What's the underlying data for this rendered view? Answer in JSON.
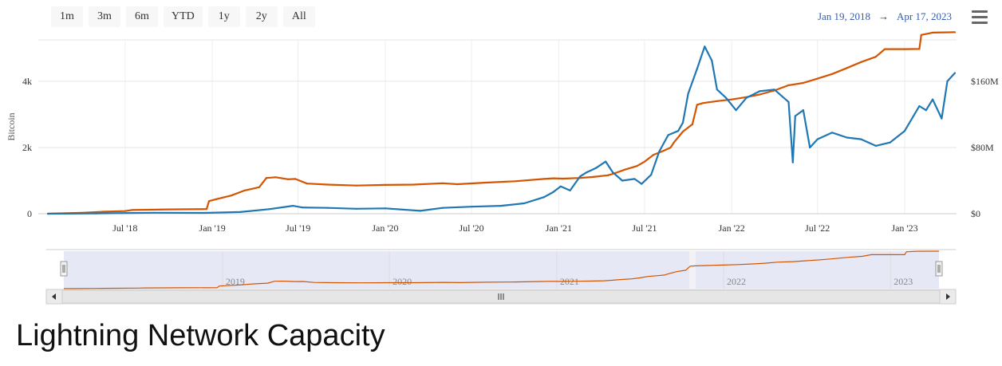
{
  "range_buttons": [
    "1m",
    "3m",
    "6m",
    "YTD",
    "1y",
    "2y",
    "All"
  ],
  "date_range": {
    "from": "Jan 19, 2018",
    "arrow": "→",
    "to": "Apr 17, 2023"
  },
  "page_title": "Lightning Network Capacity",
  "colors": {
    "usd_line": "#1f77b4",
    "btc_line": "#d45500",
    "grid": "#e6e6e6",
    "navigator_mask": "#e6e8f5"
  },
  "chart_data": {
    "type": "line",
    "x_start": "2018-01-19",
    "x_end": "2023-04-17",
    "x_ticks": [
      {
        "label": "Jul '18",
        "date": "2018-07-01"
      },
      {
        "label": "Jan '19",
        "date": "2019-01-01"
      },
      {
        "label": "Jul '19",
        "date": "2019-07-01"
      },
      {
        "label": "Jan '20",
        "date": "2020-01-01"
      },
      {
        "label": "Jul '20",
        "date": "2020-07-01"
      },
      {
        "label": "Jan '21",
        "date": "2021-01-01"
      },
      {
        "label": "Jul '21",
        "date": "2021-07-01"
      },
      {
        "label": "Jan '22",
        "date": "2022-01-01"
      },
      {
        "label": "Jul '22",
        "date": "2022-07-01"
      },
      {
        "label": "Jan '23",
        "date": "2023-01-01"
      }
    ],
    "y_left": {
      "label": "Bitcoin",
      "min": 0,
      "max": 5250,
      "ticks": [
        {
          "v": 0,
          "label": "0"
        },
        {
          "v": 2000,
          "label": "2k"
        },
        {
          "v": 4000,
          "label": "4k"
        }
      ]
    },
    "y_right": {
      "label": "",
      "min": 0,
      "max": 210000000,
      "ticks": [
        {
          "v": 0,
          "label": "$0"
        },
        {
          "v": 80000000,
          "label": "$80M"
        },
        {
          "v": 160000000,
          "label": "$160M"
        }
      ]
    },
    "navigator_ticks": [
      "2019",
      "2020",
      "2021",
      "2022",
      "2023"
    ],
    "navigator_tick_dates": [
      "2019-01-01",
      "2020-01-01",
      "2021-01-01",
      "2022-01-01",
      "2023-01-01"
    ],
    "grid": true,
    "legend": "none",
    "series": [
      {
        "axis": "left",
        "color": "#d45500",
        "points": [
          [
            "2018-01-19",
            0
          ],
          [
            "2018-04-01",
            30
          ],
          [
            "2018-05-15",
            60
          ],
          [
            "2018-07-01",
            80
          ],
          [
            "2018-07-15",
            110
          ],
          [
            "2018-10-01",
            130
          ],
          [
            "2018-12-20",
            140
          ],
          [
            "2018-12-25",
            380
          ],
          [
            "2019-01-10",
            440
          ],
          [
            "2019-02-10",
            550
          ],
          [
            "2019-03-10",
            700
          ],
          [
            "2019-04-10",
            800
          ],
          [
            "2019-04-25",
            1080
          ],
          [
            "2019-05-15",
            1100
          ],
          [
            "2019-06-10",
            1040
          ],
          [
            "2019-06-25",
            1050
          ],
          [
            "2019-07-20",
            910
          ],
          [
            "2019-09-01",
            880
          ],
          [
            "2019-11-01",
            850
          ],
          [
            "2020-01-01",
            870
          ],
          [
            "2020-03-01",
            880
          ],
          [
            "2020-05-01",
            920
          ],
          [
            "2020-06-01",
            890
          ],
          [
            "2020-08-01",
            940
          ],
          [
            "2020-10-01",
            980
          ],
          [
            "2020-12-01",
            1050
          ],
          [
            "2020-12-20",
            1070
          ],
          [
            "2021-01-10",
            1060
          ],
          [
            "2021-02-15",
            1080
          ],
          [
            "2021-03-15",
            1110
          ],
          [
            "2021-04-15",
            1160
          ],
          [
            "2021-05-01",
            1230
          ],
          [
            "2021-05-20",
            1330
          ],
          [
            "2021-06-15",
            1440
          ],
          [
            "2021-07-01",
            1570
          ],
          [
            "2021-07-20",
            1780
          ],
          [
            "2021-08-10",
            1900
          ],
          [
            "2021-08-25",
            2000
          ],
          [
            "2021-09-01",
            2150
          ],
          [
            "2021-09-20",
            2480
          ],
          [
            "2021-10-10",
            2700
          ],
          [
            "2021-10-20",
            3290
          ],
          [
            "2021-11-01",
            3340
          ],
          [
            "2021-12-01",
            3400
          ],
          [
            "2022-01-01",
            3450
          ],
          [
            "2022-02-01",
            3520
          ],
          [
            "2022-03-01",
            3600
          ],
          [
            "2022-04-01",
            3720
          ],
          [
            "2022-05-01",
            3880
          ],
          [
            "2022-06-01",
            3950
          ],
          [
            "2022-07-01",
            4080
          ],
          [
            "2022-08-01",
            4220
          ],
          [
            "2022-09-01",
            4400
          ],
          [
            "2022-10-01",
            4580
          ],
          [
            "2022-11-01",
            4740
          ],
          [
            "2022-11-20",
            4970
          ],
          [
            "2023-01-01",
            4970
          ],
          [
            "2023-02-01",
            4975
          ],
          [
            "2023-02-05",
            5400
          ],
          [
            "2023-03-01",
            5470
          ],
          [
            "2023-04-17",
            5480
          ]
        ]
      },
      {
        "axis": "right",
        "color": "#1f77b4",
        "points": [
          [
            "2018-01-19",
            0
          ],
          [
            "2018-05-01",
            400000
          ],
          [
            "2018-09-01",
            1200000
          ],
          [
            "2018-12-15",
            1000000
          ],
          [
            "2019-03-01",
            2000000
          ],
          [
            "2019-05-01",
            5500000
          ],
          [
            "2019-06-20",
            9500000
          ],
          [
            "2019-07-10",
            7500000
          ],
          [
            "2019-09-01",
            7000000
          ],
          [
            "2019-11-01",
            6000000
          ],
          [
            "2020-01-01",
            6500000
          ],
          [
            "2020-03-15",
            3500000
          ],
          [
            "2020-05-01",
            7000000
          ],
          [
            "2020-07-01",
            8500000
          ],
          [
            "2020-09-01",
            9500000
          ],
          [
            "2020-10-20",
            12500000
          ],
          [
            "2020-12-01",
            20000000
          ],
          [
            "2020-12-20",
            26000000
          ],
          [
            "2021-01-05",
            33000000
          ],
          [
            "2021-01-25",
            28000000
          ],
          [
            "2021-02-15",
            45000000
          ],
          [
            "2021-03-01",
            50000000
          ],
          [
            "2021-03-20",
            55000000
          ],
          [
            "2021-04-10",
            63000000
          ],
          [
            "2021-04-25",
            50000000
          ],
          [
            "2021-05-15",
            40000000
          ],
          [
            "2021-06-10",
            42000000
          ],
          [
            "2021-06-25",
            36000000
          ],
          [
            "2021-07-15",
            47000000
          ],
          [
            "2021-08-01",
            75000000
          ],
          [
            "2021-08-20",
            95000000
          ],
          [
            "2021-09-10",
            100000000
          ],
          [
            "2021-09-20",
            110000000
          ],
          [
            "2021-10-01",
            145000000
          ],
          [
            "2021-10-20",
            175000000
          ],
          [
            "2021-11-05",
            202000000
          ],
          [
            "2021-11-20",
            185000000
          ],
          [
            "2021-12-01",
            150000000
          ],
          [
            "2021-12-20",
            140000000
          ],
          [
            "2022-01-10",
            125000000
          ],
          [
            "2022-02-01",
            140000000
          ],
          [
            "2022-03-01",
            148000000
          ],
          [
            "2022-04-01",
            150000000
          ],
          [
            "2022-05-01",
            135000000
          ],
          [
            "2022-05-10",
            62000000
          ],
          [
            "2022-05-15",
            118000000
          ],
          [
            "2022-06-01",
            125000000
          ],
          [
            "2022-06-15",
            80000000
          ],
          [
            "2022-07-01",
            90000000
          ],
          [
            "2022-08-01",
            98000000
          ],
          [
            "2022-09-01",
            92000000
          ],
          [
            "2022-10-01",
            90000000
          ],
          [
            "2022-11-01",
            82000000
          ],
          [
            "2022-12-01",
            86000000
          ],
          [
            "2023-01-01",
            100000000
          ],
          [
            "2023-02-01",
            130000000
          ],
          [
            "2023-02-15",
            125000000
          ],
          [
            "2023-03-01",
            138000000
          ],
          [
            "2023-03-20",
            115000000
          ],
          [
            "2023-04-01",
            160000000
          ],
          [
            "2023-04-17",
            170000000
          ]
        ]
      }
    ]
  }
}
